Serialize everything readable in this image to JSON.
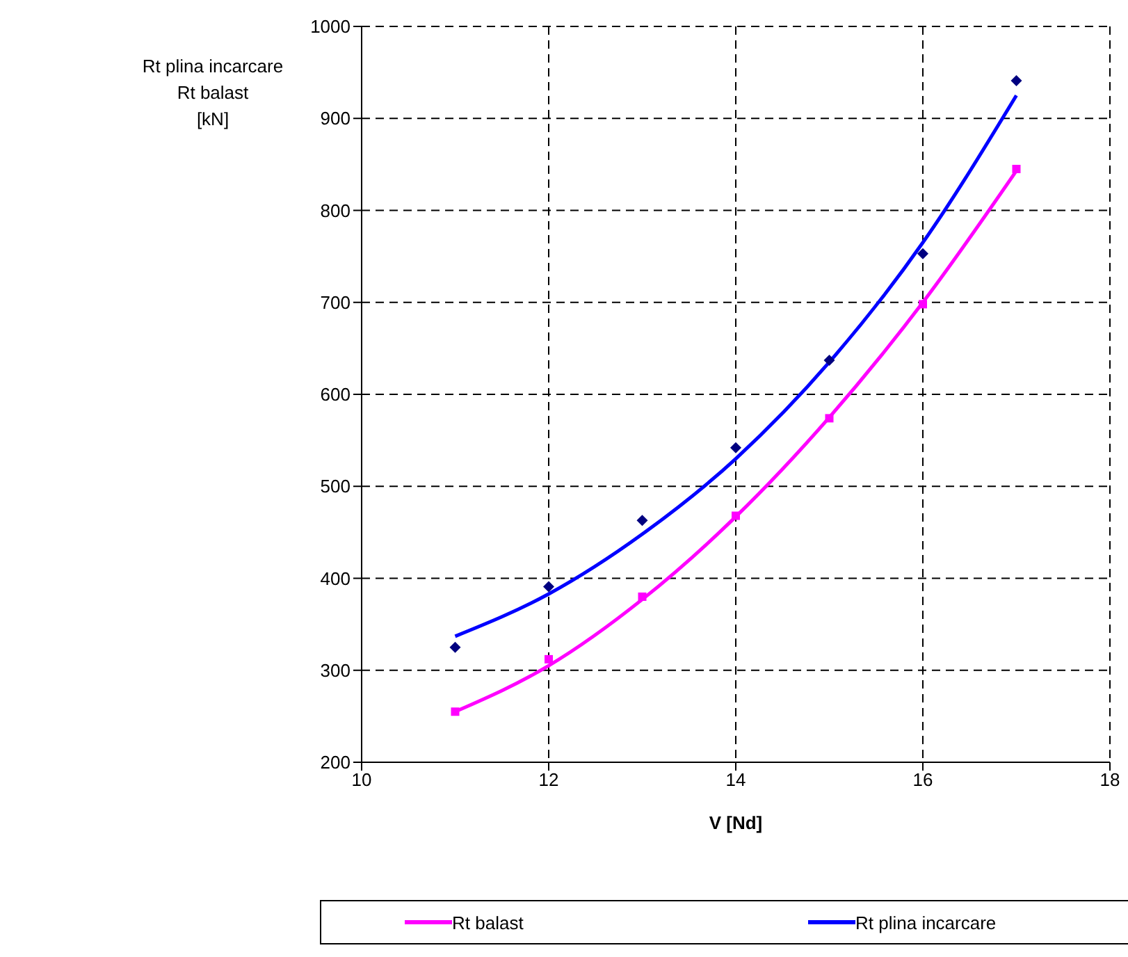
{
  "chart_data": {
    "type": "line",
    "ylabel": "Rt plina incarcare\nRt balast\n[kN]",
    "xlabel": "V [Nd]",
    "xlim": [
      10,
      18
    ],
    "xticks": [
      10,
      12,
      14,
      16,
      18
    ],
    "ylim": [
      200,
      1000
    ],
    "yticks": [
      200,
      300,
      400,
      500,
      600,
      700,
      800,
      900,
      1000
    ],
    "grid": true,
    "legend": "bottom",
    "series": [
      {
        "type": "scatter",
        "marker": "diamond",
        "color": "#000080",
        "x": [
          11,
          12,
          13,
          14,
          15,
          16,
          17
        ],
        "values": [
          325,
          391,
          463,
          542,
          637,
          753,
          941
        ]
      },
      {
        "type": "scatter",
        "marker": "square",
        "color": "#ff00ff",
        "x": [
          11,
          12,
          13,
          14,
          15,
          16,
          17
        ],
        "values": [
          255,
          312,
          380,
          468,
          574,
          698,
          845
        ]
      },
      {
        "type": "line",
        "name": "Rt balast",
        "color": "#ff00ff",
        "x": [
          11,
          12,
          13,
          14,
          15,
          16,
          17
        ],
        "values": [
          255,
          305,
          377,
          467,
          575,
          700,
          843
        ]
      },
      {
        "type": "line",
        "name": "Rt plina incarcare",
        "color": "#0000ff",
        "x": [
          11,
          12,
          13,
          14,
          15,
          16,
          17
        ],
        "values": [
          337,
          383,
          448,
          530,
          635,
          765,
          925
        ]
      }
    ]
  }
}
